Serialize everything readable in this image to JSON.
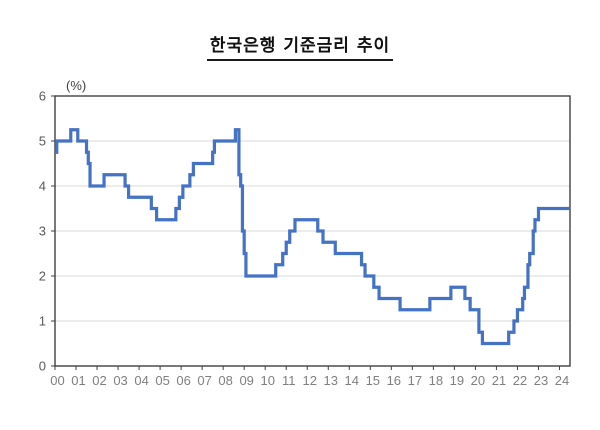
{
  "title": "한국은행 기준금리 추이",
  "chart_data": {
    "type": "line",
    "subtype": "step",
    "title": "한국은행 기준금리 추이",
    "unit_label": "(%)",
    "xlabel": "",
    "ylabel": "",
    "ylim": [
      0,
      6
    ],
    "y_ticks": [
      0,
      1,
      2,
      3,
      4,
      5,
      6
    ],
    "x_tick_labels": [
      "00",
      "01",
      "02",
      "03",
      "04",
      "05",
      "06",
      "07",
      "08",
      "09",
      "10",
      "11",
      "12",
      "13",
      "14",
      "15",
      "16",
      "17",
      "18",
      "19",
      "20",
      "21",
      "22",
      "23",
      "24"
    ],
    "x_start_year": 2000,
    "x_end_year_fraction": 24.5,
    "grid": "horizontal",
    "legend": "none",
    "line_color": "#4472C4",
    "grid_color": "#D9D9D9",
    "axis_color": "#404040",
    "xlabel_color": "#7F7F7F",
    "ylabel_color": "#595959",
    "unit_label_color": "#404040",
    "series": [
      {
        "name": "기준금리",
        "changes": [
          {
            "date": "2000-01",
            "rate": 4.75
          },
          {
            "date": "2000-02",
            "rate": 5.0
          },
          {
            "date": "2000-10",
            "rate": 5.25
          },
          {
            "date": "2001-02",
            "rate": 5.0
          },
          {
            "date": "2001-07",
            "rate": 4.75
          },
          {
            "date": "2001-08",
            "rate": 4.5
          },
          {
            "date": "2001-09",
            "rate": 4.0
          },
          {
            "date": "2002-05",
            "rate": 4.25
          },
          {
            "date": "2003-05",
            "rate": 4.0
          },
          {
            "date": "2003-07",
            "rate": 3.75
          },
          {
            "date": "2004-08",
            "rate": 3.5
          },
          {
            "date": "2004-11",
            "rate": 3.25
          },
          {
            "date": "2005-10",
            "rate": 3.5
          },
          {
            "date": "2005-12",
            "rate": 3.75
          },
          {
            "date": "2006-02",
            "rate": 4.0
          },
          {
            "date": "2006-06",
            "rate": 4.25
          },
          {
            "date": "2006-08",
            "rate": 4.5
          },
          {
            "date": "2007-07",
            "rate": 4.75
          },
          {
            "date": "2007-08",
            "rate": 5.0
          },
          {
            "date": "2008-08",
            "rate": 5.25
          },
          {
            "date": "2008-10",
            "rate": 4.25
          },
          {
            "date": "2008-11",
            "rate": 4.0
          },
          {
            "date": "2008-12",
            "rate": 3.0
          },
          {
            "date": "2009-01",
            "rate": 2.5
          },
          {
            "date": "2009-02",
            "rate": 2.0
          },
          {
            "date": "2010-07",
            "rate": 2.25
          },
          {
            "date": "2010-11",
            "rate": 2.5
          },
          {
            "date": "2011-01",
            "rate": 2.75
          },
          {
            "date": "2011-03",
            "rate": 3.0
          },
          {
            "date": "2011-06",
            "rate": 3.25
          },
          {
            "date": "2012-07",
            "rate": 3.0
          },
          {
            "date": "2012-10",
            "rate": 2.75
          },
          {
            "date": "2013-05",
            "rate": 2.5
          },
          {
            "date": "2014-08",
            "rate": 2.25
          },
          {
            "date": "2014-10",
            "rate": 2.0
          },
          {
            "date": "2015-03",
            "rate": 1.75
          },
          {
            "date": "2015-06",
            "rate": 1.5
          },
          {
            "date": "2016-06",
            "rate": 1.25
          },
          {
            "date": "2017-11",
            "rate": 1.5
          },
          {
            "date": "2018-11",
            "rate": 1.75
          },
          {
            "date": "2019-07",
            "rate": 1.5
          },
          {
            "date": "2019-10",
            "rate": 1.25
          },
          {
            "date": "2020-03",
            "rate": 0.75
          },
          {
            "date": "2020-05",
            "rate": 0.5
          },
          {
            "date": "2021-08",
            "rate": 0.75
          },
          {
            "date": "2021-11",
            "rate": 1.0
          },
          {
            "date": "2022-01",
            "rate": 1.25
          },
          {
            "date": "2022-04",
            "rate": 1.5
          },
          {
            "date": "2022-05",
            "rate": 1.75
          },
          {
            "date": "2022-07",
            "rate": 2.25
          },
          {
            "date": "2022-08",
            "rate": 2.5
          },
          {
            "date": "2022-10",
            "rate": 3.0
          },
          {
            "date": "2022-11",
            "rate": 3.25
          },
          {
            "date": "2023-01",
            "rate": 3.5
          }
        ]
      }
    ]
  }
}
